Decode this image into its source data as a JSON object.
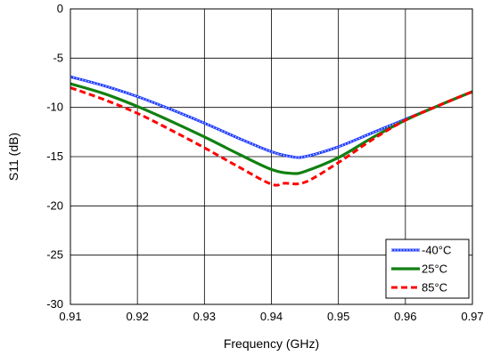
{
  "chart_data": {
    "type": "line",
    "xlabel": "Frequency (GHz)",
    "ylabel": "S11 (dB)",
    "xlim": [
      0.91,
      0.97
    ],
    "ylim": [
      -30,
      0
    ],
    "xticks": [
      "0.91",
      "0.92",
      "0.93",
      "0.94",
      "0.95",
      "0.96",
      "0.97"
    ],
    "yticks": [
      "0",
      "-5",
      "-10",
      "-15",
      "-20",
      "-25",
      "-30"
    ],
    "grid": true,
    "legend_position": "bottom-right",
    "series": [
      {
        "name": "-40°C",
        "color": "#1f3cff",
        "style": "dotted-marker",
        "x": [
          0.91,
          0.915,
          0.92,
          0.925,
          0.93,
          0.935,
          0.94,
          0.943,
          0.945,
          0.95,
          0.955,
          0.96,
          0.965,
          0.97
        ],
        "y": [
          -6.9,
          -7.8,
          -8.9,
          -10.2,
          -11.6,
          -13.1,
          -14.5,
          -15.0,
          -15.0,
          -14.0,
          -12.6,
          -11.2,
          -9.8,
          -8.4
        ]
      },
      {
        "name": "25°C",
        "color": "#108010",
        "style": "solid",
        "x": [
          0.91,
          0.915,
          0.92,
          0.925,
          0.93,
          0.935,
          0.94,
          0.943,
          0.945,
          0.95,
          0.955,
          0.96,
          0.965,
          0.97
        ],
        "y": [
          -7.6,
          -8.6,
          -9.9,
          -11.4,
          -13.0,
          -14.7,
          -16.3,
          -16.7,
          -16.5,
          -15.1,
          -13.1,
          -11.3,
          -9.8,
          -8.4
        ]
      },
      {
        "name": "85°C",
        "color": "#ff0000",
        "style": "dashed",
        "x": [
          0.91,
          0.915,
          0.92,
          0.925,
          0.93,
          0.935,
          0.94,
          0.942,
          0.945,
          0.95,
          0.955,
          0.96,
          0.965,
          0.97
        ],
        "y": [
          -8.0,
          -9.2,
          -10.6,
          -12.3,
          -14.1,
          -16.0,
          -17.8,
          -17.7,
          -17.6,
          -15.6,
          -13.3,
          -11.3,
          -9.8,
          -8.4
        ]
      }
    ]
  }
}
